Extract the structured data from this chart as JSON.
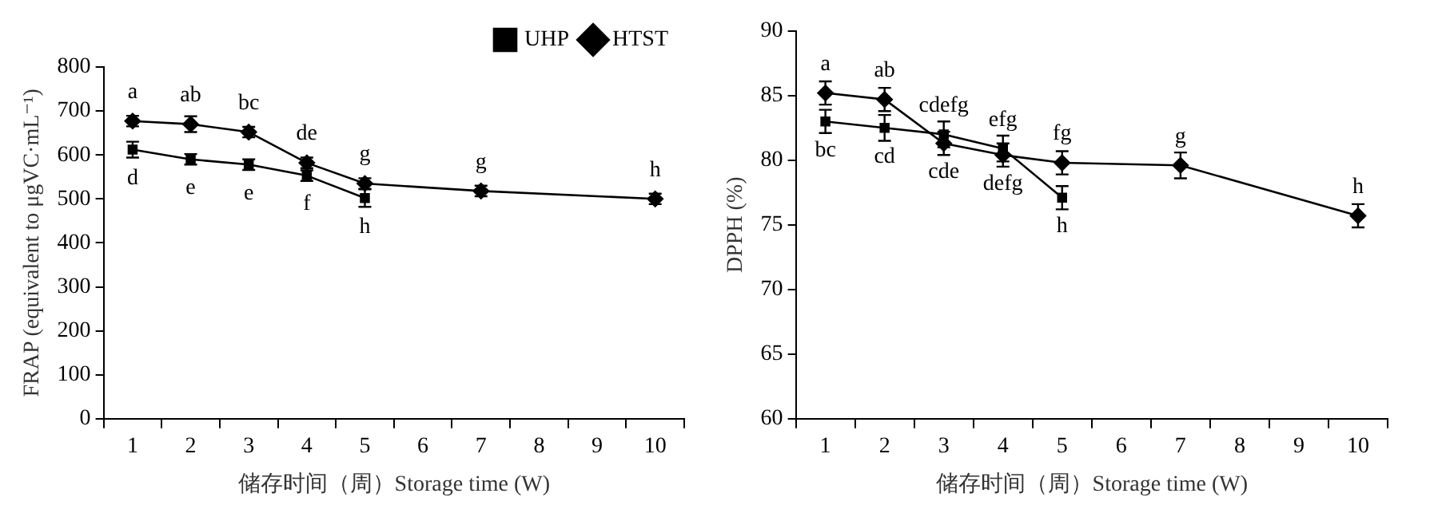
{
  "chart_data": [
    {
      "type": "line",
      "xlabel": "储存时间（周）Storage time (W)",
      "ylabel": "FRAP (equivalent to μgVC·mL⁻¹)",
      "categories": [
        "1",
        "2",
        "3",
        "4",
        "5",
        "6",
        "7",
        "8",
        "9",
        "10"
      ],
      "ylim": [
        0,
        800
      ],
      "yticks": [
        0,
        100,
        200,
        300,
        400,
        500,
        600,
        700,
        800
      ],
      "grid": false,
      "legend": "top right",
      "series": [
        {
          "name": "HTST",
          "color": "#000000",
          "marker": "diamond",
          "values": [
            677,
            670,
            652,
            582,
            535,
            null,
            518,
            null,
            null,
            500
          ],
          "errors": [
            12,
            18,
            12,
            12,
            12,
            null,
            12,
            null,
            null,
            12
          ]
        },
        {
          "name": "UHP",
          "color": "#000000",
          "marker": "square",
          "values": [
            612,
            590,
            578,
            553,
            502,
            null,
            null,
            null,
            null,
            null
          ],
          "errors": [
            18,
            12,
            12,
            12,
            20,
            null,
            null,
            null,
            null,
            null
          ]
        }
      ],
      "annotations": [
        {
          "text": "a",
          "x": "1",
          "y": 677
        },
        {
          "text": "ab",
          "x": "2",
          "y": 670
        },
        {
          "text": "bc",
          "x": "3",
          "y": 652
        },
        {
          "text": "de",
          "x": "4",
          "y": 582
        },
        {
          "text": "g",
          "x": "5",
          "y": 535
        },
        {
          "text": "g",
          "x": "7",
          "y": 518
        },
        {
          "text": "h",
          "x": "10",
          "y": 500
        },
        {
          "text": "d",
          "x": "1",
          "y": 612
        },
        {
          "text": "e",
          "x": "2",
          "y": 590
        },
        {
          "text": "e",
          "x": "3",
          "y": 578
        },
        {
          "text": "f",
          "x": "4",
          "y": 553
        },
        {
          "text": "h",
          "x": "5",
          "y": 502
        }
      ]
    },
    {
      "type": "line",
      "xlabel": "储存时间（周）Storage time (W)",
      "ylabel": "DPPH (%)",
      "categories": [
        "1",
        "2",
        "3",
        "4",
        "5",
        "6",
        "7",
        "8",
        "9",
        "10"
      ],
      "ylim": [
        60,
        90
      ],
      "yticks": [
        60,
        65,
        70,
        75,
        80,
        85,
        90
      ],
      "grid": false,
      "series": [
        {
          "color": "#000000",
          "marker": "diamond",
          "values": [
            85.2,
            84.7,
            81.3,
            80.4,
            79.8,
            null,
            79.6,
            null,
            null,
            75.7
          ],
          "errors": [
            0.9,
            0.9,
            0.9,
            0.9,
            0.9,
            null,
            1.0,
            null,
            null,
            0.9
          ]
        },
        {
          "color": "#000000",
          "marker": "square",
          "values": [
            83.0,
            82.5,
            82.0,
            80.9,
            77.1,
            null,
            null,
            null,
            null,
            null
          ],
          "errors": [
            0.9,
            1.0,
            1.0,
            1.0,
            0.9,
            null,
            null,
            null,
            null,
            null
          ]
        }
      ],
      "annotations": [
        {
          "text": "a",
          "x": "1",
          "y": 85.2
        },
        {
          "text": "ab",
          "x": "2",
          "y": 84.7
        },
        {
          "text": "cde",
          "x": "3",
          "y": 81.3
        },
        {
          "text": "defg",
          "x": "4",
          "y": 80.4
        },
        {
          "text": "fg",
          "x": "5",
          "y": 79.8
        },
        {
          "text": "g",
          "x": "7",
          "y": 79.6
        },
        {
          "text": "h",
          "x": "10",
          "y": 75.7
        },
        {
          "text": "bc",
          "x": "1",
          "y": 83.0
        },
        {
          "text": "cd",
          "x": "2",
          "y": 82.5
        },
        {
          "text": "cdefg",
          "x": "3",
          "y": 82.0
        },
        {
          "text": "efg",
          "x": "4",
          "y": 80.9
        },
        {
          "text": "h",
          "x": "5",
          "y": 77.1
        }
      ]
    }
  ]
}
